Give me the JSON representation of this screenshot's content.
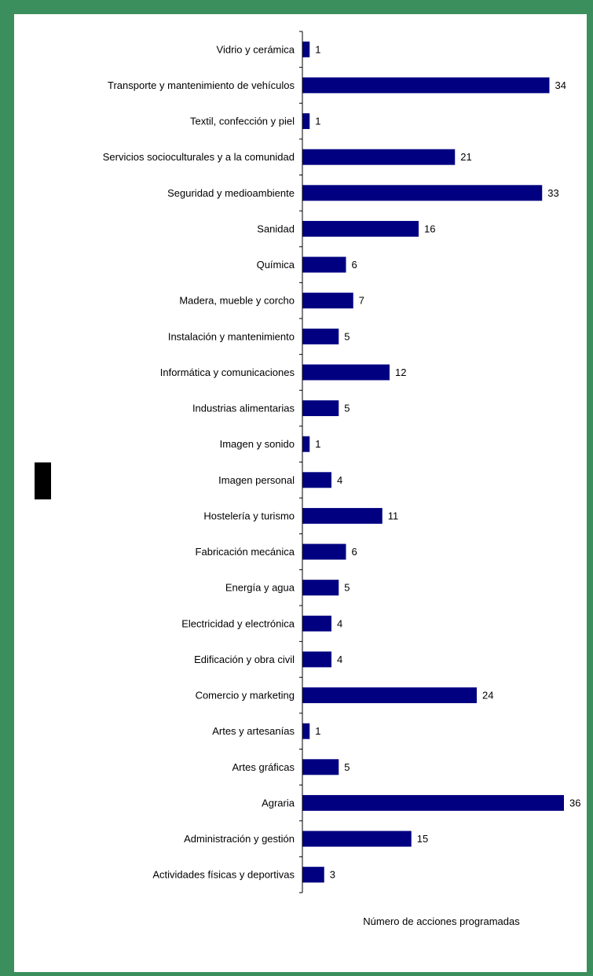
{
  "chart_data": {
    "type": "bar",
    "orientation": "horizontal",
    "categories": [
      "Vidrio y cerámica",
      "Transporte y mantenimiento de vehículos",
      "Textil, confección y piel",
      "Servicios socioculturales y a la comunidad",
      "Seguridad y medioambiente",
      "Sanidad",
      "Química",
      "Madera, mueble y corcho",
      "Instalación y mantenimiento",
      "Informática y comunicaciones",
      "Industrias alimentarias",
      "Imagen y sonido",
      "Imagen personal",
      "Hostelería y turismo",
      "Fabricación mecánica",
      "Energía y agua",
      "Electricidad y electrónica",
      "Edificación y obra civil",
      "Comercio y marketing",
      "Artes y artesanías",
      "Artes gráficas",
      "Agraria",
      "Administración y gestión",
      "Actividades físicas y deportivas"
    ],
    "values": [
      1,
      34,
      1,
      21,
      33,
      16,
      6,
      7,
      5,
      12,
      5,
      1,
      4,
      11,
      6,
      5,
      4,
      4,
      24,
      1,
      5,
      36,
      15,
      3
    ],
    "xlabel": "Número de acciones programadas",
    "ylabel": "",
    "xlim": [
      0,
      36
    ],
    "grid": false,
    "bar_color": "#000080",
    "frame_color": "#3a8f5c"
  }
}
